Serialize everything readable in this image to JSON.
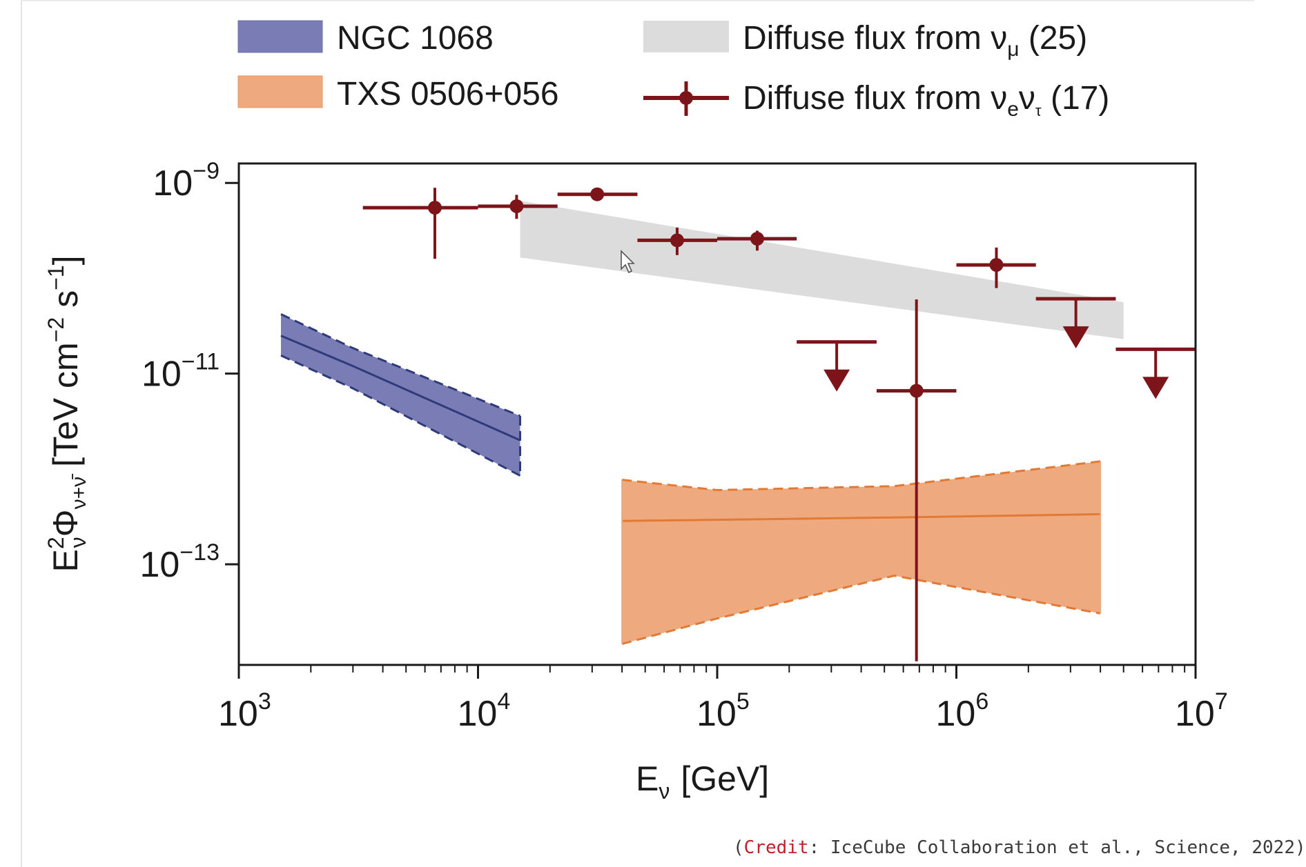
{
  "chart_data": {
    "type": "line",
    "xlabel": "E",
    "xlabel_sub": "ν",
    "xlabel_unit": "[GeV]",
    "ylabel_main": "E",
    "ylabel_sup": "2",
    "ylabel_sub_e": "ν",
    "ylabel_phi": "Φ",
    "ylabel_phi_sub": "ν+ν̄",
    "ylabel_units": "[TeV cm",
    "ylabel_cm_exp": "−2",
    "ylabel_s": " s",
    "ylabel_s_exp": "−1",
    "ylabel_close": "]",
    "x_scale": "log",
    "y_scale": "log",
    "xlim": [
      1000,
      10000000
    ],
    "ylim": [
      8.8e-15,
      1.6e-09
    ],
    "x_ticks": [
      {
        "value": 1000,
        "base": "10",
        "exp": "3"
      },
      {
        "value": 10000,
        "base": "10",
        "exp": "4"
      },
      {
        "value": 100000,
        "base": "10",
        "exp": "5"
      },
      {
        "value": 1000000,
        "base": "10",
        "exp": "6"
      },
      {
        "value": 10000000,
        "base": "10",
        "exp": "7"
      }
    ],
    "y_ticks": [
      {
        "value": 1e-09,
        "base": "10",
        "exp": "−9"
      },
      {
        "value": 1e-11,
        "base": "10",
        "exp": "−11"
      },
      {
        "value": 1e-13,
        "base": "10",
        "exp": "−13"
      }
    ],
    "legend": {
      "placement": "top",
      "entries": [
        {
          "id": "ngc",
          "label": "NGC 1068",
          "sub": "",
          "sub2": "",
          "suffix": ""
        },
        {
          "id": "txs",
          "label": "TXS 0506+056",
          "sub": "",
          "sub2": "",
          "suffix": ""
        },
        {
          "id": "numu",
          "label": "Diffuse flux from ν",
          "sub": "μ",
          "sub2": "",
          "suffix": " (25)"
        },
        {
          "id": "nuet",
          "label": "Diffuse flux from ν",
          "sub": "e",
          "sub2": "τ",
          "mid": "ν",
          "suffix": " (17)"
        }
      ]
    },
    "series": [
      {
        "name": "NGC 1068",
        "kind": "band",
        "color": "#2e3a7a",
        "fill": "#7a7db5",
        "x": [
          1500,
          3000,
          15000
        ],
        "central": [
          2.5e-11,
          1.2e-11,
          2e-12
        ],
        "upper": [
          4.2e-11,
          1.85e-11,
          3.6e-12
        ],
        "lower": [
          1.55e-11,
          7e-12,
          8.5e-13
        ]
      },
      {
        "name": "TXS 0506+056",
        "kind": "band",
        "color": "#e07a34",
        "fill": "#eea97f",
        "x": [
          40000,
          100000,
          550000,
          4000000
        ],
        "central": [
          2.85e-13,
          2.93e-13,
          3.1e-13,
          3.35e-13
        ],
        "upper": [
          7.7e-13,
          6e-13,
          6.6e-13,
          1.2e-12
        ],
        "lower": [
          1.46e-14,
          2.7e-14,
          7.6e-14,
          3.05e-14
        ]
      },
      {
        "name": "Diffuse flux from νμ (25)",
        "kind": "band",
        "color": "#d3d3d3",
        "fill": "#dcdcdc",
        "x": [
          15000,
          5000000
        ],
        "upper": [
          6.5e-10,
          5.6e-11
        ],
        "lower": [
          1.65e-10,
          2.3e-11
        ]
      },
      {
        "name": "Diffuse flux from νeντ (17)",
        "kind": "errorbar",
        "color": "#7d1419",
        "points": [
          {
            "x": 6600,
            "xlo": 3300,
            "xhi": 10000,
            "y": 5.5e-10,
            "ylo": 1.6e-10,
            "yhi": 8.9e-10,
            "upper_limit": false
          },
          {
            "x": 14500,
            "xlo": 10000,
            "xhi": 21500,
            "y": 5.7e-10,
            "ylo": 4.2e-10,
            "yhi": 7.5e-10,
            "upper_limit": false
          },
          {
            "x": 31500,
            "xlo": 21500,
            "xhi": 46400,
            "y": 7.6e-10,
            "ylo": null,
            "yhi": null,
            "upper_limit": false
          },
          {
            "x": 68000,
            "xlo": 46400,
            "xhi": 100000,
            "y": 2.5e-10,
            "ylo": 1.75e-10,
            "yhi": 3.4e-10,
            "upper_limit": false
          },
          {
            "x": 147000,
            "xlo": 100000,
            "xhi": 215000,
            "y": 2.6e-10,
            "ylo": 1.95e-10,
            "yhi": 3.15e-10,
            "upper_limit": false
          },
          {
            "x": 316000,
            "xlo": 215000,
            "xhi": 464000,
            "y": 2.15e-11,
            "ylo": null,
            "yhi": null,
            "upper_limit": true
          },
          {
            "x": 681000,
            "xlo": 464000,
            "xhi": 1000000,
            "y": 6.6e-12,
            "ylo": 9.6e-15,
            "yhi": 6e-11,
            "upper_limit": false
          },
          {
            "x": 1470000,
            "xlo": 1000000,
            "xhi": 2150000,
            "y": 1.38e-10,
            "ylo": 7.9e-11,
            "yhi": 2.1e-10,
            "upper_limit": false
          },
          {
            "x": 3160000,
            "xlo": 2150000,
            "xhi": 4640000,
            "y": 6.1e-11,
            "ylo": null,
            "yhi": null,
            "upper_limit": true
          },
          {
            "x": 6810000,
            "xlo": 4640000,
            "xhi": 10000000,
            "y": 1.8e-11,
            "ylo": null,
            "yhi": null,
            "upper_limit": true
          }
        ]
      }
    ]
  },
  "credit": {
    "open": "(",
    "word": "Credit",
    "rest": ": IceCube Collaboration et al., Science, 2022)"
  }
}
